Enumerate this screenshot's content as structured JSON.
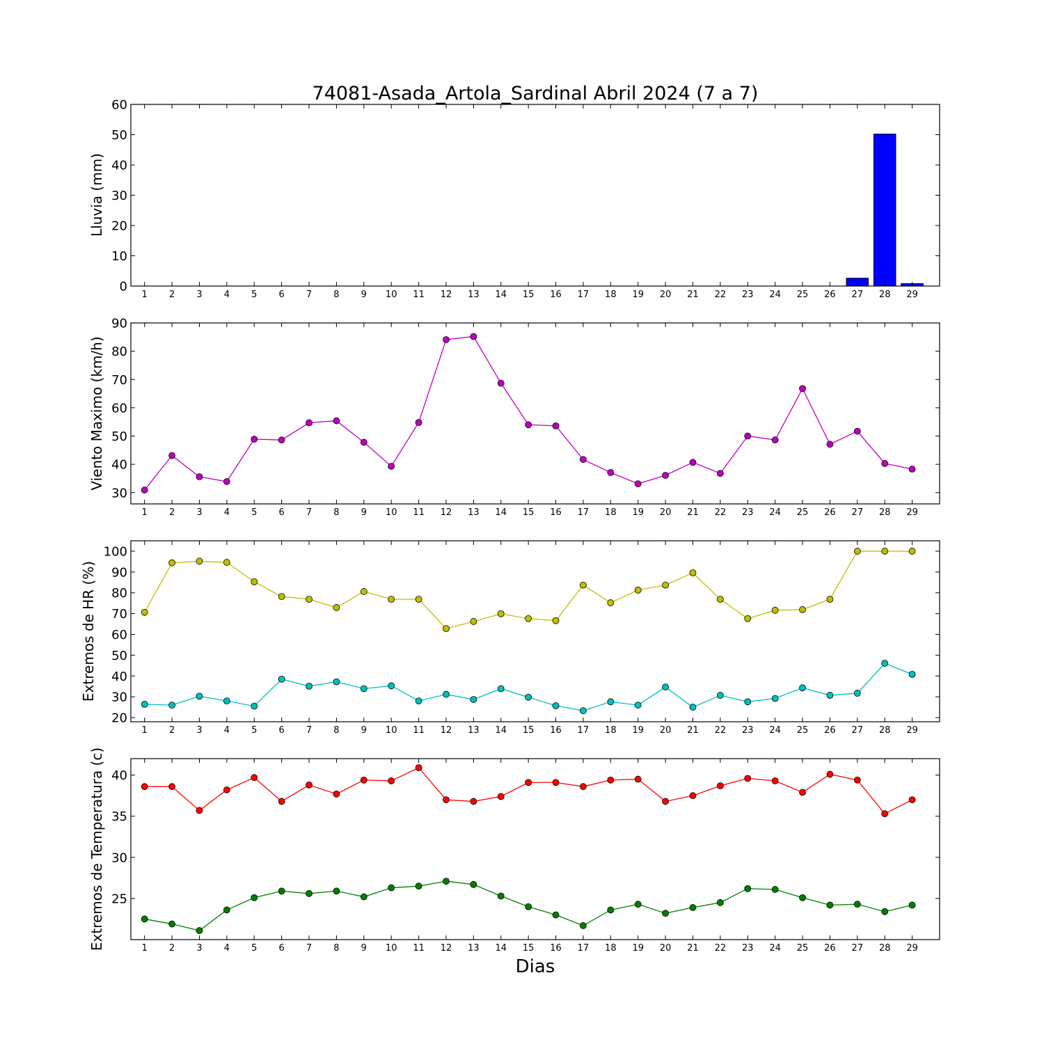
{
  "figure": {
    "title": "74081-Asada_Artola_Sardinal Abril 2024  (7 a 7)",
    "xlabel": "Dias"
  },
  "chart_data": [
    {
      "type": "bar",
      "ylabel": "Lluvia (mm)",
      "x": [
        1,
        2,
        3,
        4,
        5,
        6,
        7,
        8,
        9,
        10,
        11,
        12,
        13,
        14,
        15,
        16,
        17,
        18,
        19,
        20,
        21,
        22,
        23,
        24,
        25,
        26,
        27,
        28,
        29
      ],
      "ylim": [
        0,
        60
      ],
      "yticks": [
        0,
        10,
        20,
        30,
        40,
        50,
        60
      ],
      "series": [
        {
          "values": [
            0,
            0,
            0,
            0,
            0,
            0,
            0,
            0,
            0,
            0,
            0,
            0,
            0,
            0,
            0,
            0,
            0,
            0,
            0,
            0,
            0,
            0,
            0,
            0,
            0,
            0,
            2.6,
            50.2,
            0.8
          ],
          "color": "#0000ff"
        }
      ]
    },
    {
      "type": "line",
      "ylabel": "Viento Maximo (km/h)",
      "x": [
        1,
        2,
        3,
        4,
        5,
        6,
        7,
        8,
        9,
        10,
        11,
        12,
        13,
        14,
        15,
        16,
        17,
        18,
        19,
        20,
        21,
        22,
        23,
        24,
        25,
        26,
        27,
        28,
        29
      ],
      "ylim": [
        26,
        90
      ],
      "yticks": [
        30,
        40,
        50,
        60,
        70,
        80,
        90
      ],
      "series": [
        {
          "values": [
            30.9,
            43.1,
            35.6,
            33.9,
            48.9,
            48.6,
            54.7,
            55.4,
            47.8,
            39.3,
            54.8,
            84.1,
            85.2,
            68.7,
            54.0,
            53.6,
            41.7,
            37.1,
            33.1,
            36.1,
            40.7,
            36.8,
            50.0,
            48.6,
            66.8,
            47.1,
            51.7,
            40.3,
            38.3
          ],
          "color": "#bf00bf"
        }
      ]
    },
    {
      "type": "line",
      "ylabel": "Extremos de HR (%)",
      "x": [
        1,
        2,
        3,
        4,
        5,
        6,
        7,
        8,
        9,
        10,
        11,
        12,
        13,
        14,
        15,
        16,
        17,
        18,
        19,
        20,
        21,
        22,
        23,
        24,
        25,
        26,
        27,
        28,
        29
      ],
      "ylim": [
        18,
        105
      ],
      "yticks": [
        20,
        30,
        40,
        50,
        60,
        70,
        80,
        90,
        100
      ],
      "series": [
        {
          "values": [
            70.6,
            94.4,
            95.2,
            94.6,
            85.3,
            78.2,
            76.9,
            72.9,
            80.6,
            76.9,
            76.9,
            62.8,
            66.2,
            69.9,
            67.6,
            66.6,
            83.7,
            75.2,
            81.3,
            83.7,
            89.6,
            76.9,
            67.6,
            71.6,
            71.9,
            76.9,
            100,
            100,
            100
          ],
          "color": "#bfbf00"
        },
        {
          "values": [
            26.4,
            26.0,
            30.3,
            28.0,
            25.5,
            38.5,
            35.1,
            37.2,
            33.9,
            35.3,
            28.0,
            31.2,
            28.7,
            33.9,
            29.8,
            25.7,
            23.3,
            27.6,
            26.0,
            34.7,
            25.0,
            30.7,
            27.6,
            29.2,
            34.3,
            30.7,
            31.7,
            46.1,
            40.8
          ],
          "color": "#00bfbf"
        }
      ]
    },
    {
      "type": "line",
      "ylabel": "Extremos de Temperatura (c)",
      "x": [
        1,
        2,
        3,
        4,
        5,
        6,
        7,
        8,
        9,
        10,
        11,
        12,
        13,
        14,
        15,
        16,
        17,
        18,
        19,
        20,
        21,
        22,
        23,
        24,
        25,
        26,
        27,
        28,
        29
      ],
      "ylim": [
        20,
        42
      ],
      "yticks": [
        25,
        30,
        35,
        40
      ],
      "series": [
        {
          "values": [
            38.6,
            38.6,
            35.7,
            38.2,
            39.7,
            36.8,
            38.8,
            37.7,
            39.4,
            39.3,
            40.9,
            37.0,
            36.8,
            37.4,
            39.1,
            39.1,
            38.6,
            39.4,
            39.5,
            36.8,
            37.5,
            38.7,
            39.6,
            39.3,
            37.9,
            40.1,
            39.4,
            35.3,
            37.0
          ],
          "color": "#ff0000"
        },
        {
          "values": [
            22.5,
            21.9,
            21.1,
            23.6,
            25.1,
            25.9,
            25.6,
            25.9,
            25.2,
            26.3,
            26.5,
            27.1,
            26.7,
            25.3,
            24.0,
            23.0,
            21.7,
            23.6,
            24.3,
            23.2,
            23.9,
            24.5,
            26.2,
            26.1,
            25.1,
            24.2,
            24.3,
            23.4,
            24.2
          ],
          "color": "#008000"
        }
      ]
    }
  ]
}
